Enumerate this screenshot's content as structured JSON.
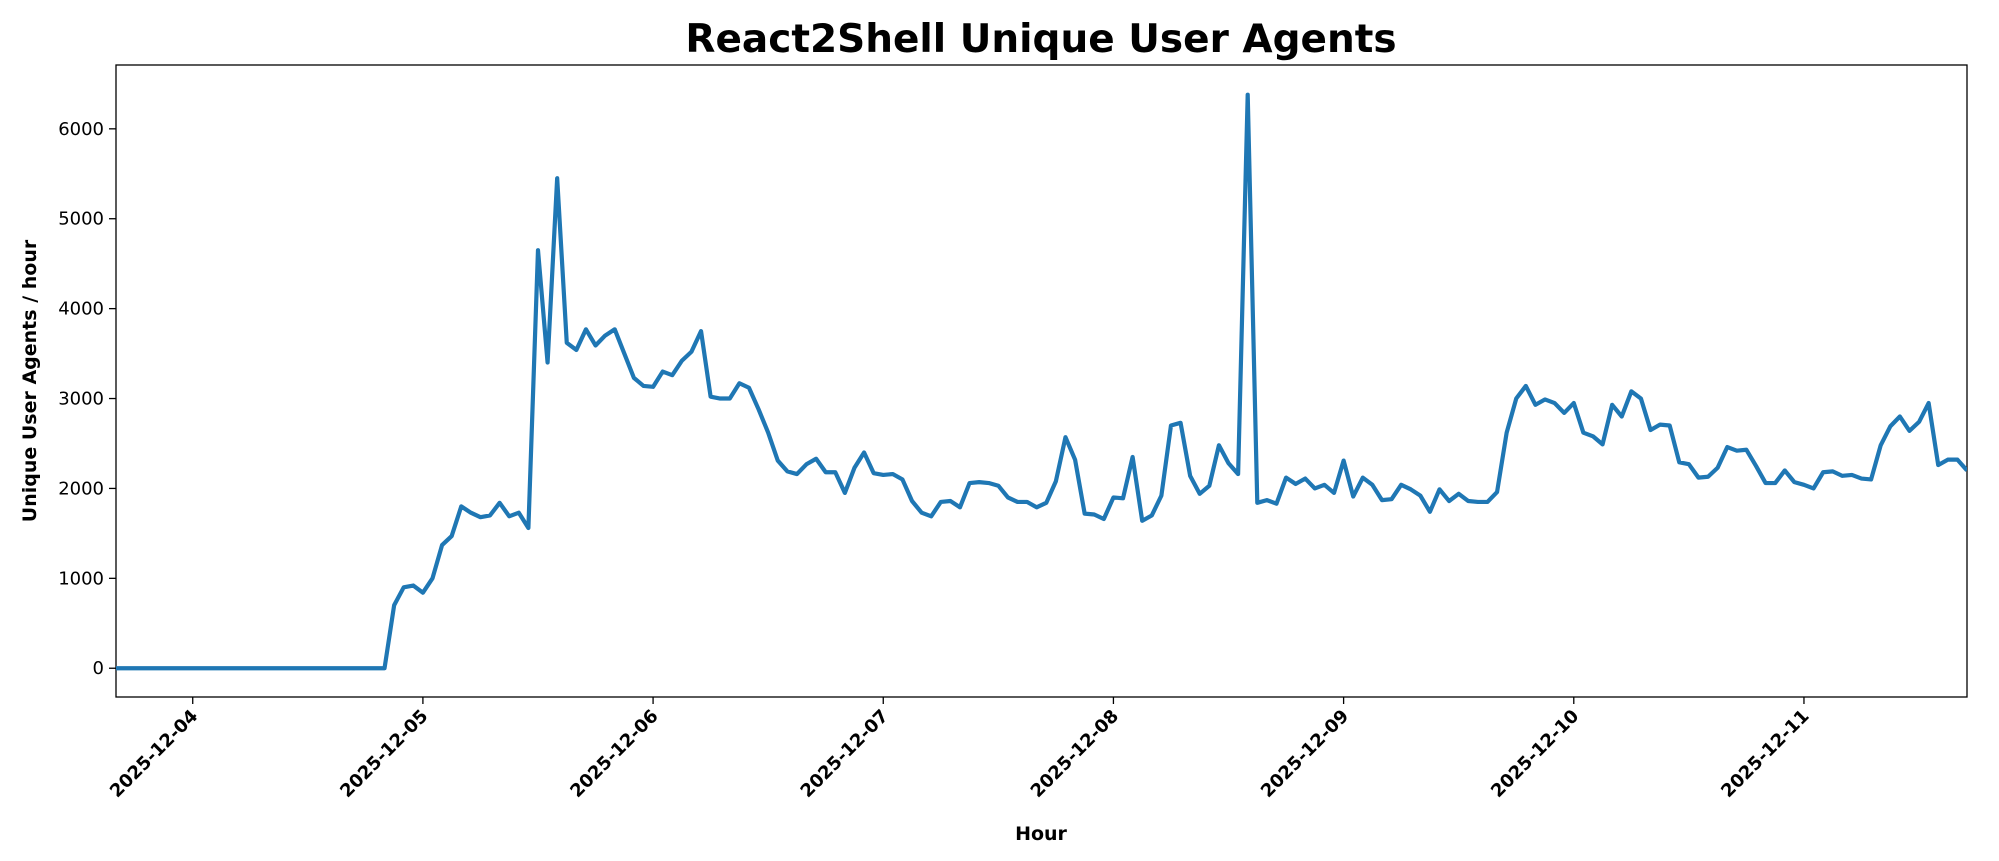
{
  "chart_data": {
    "type": "line",
    "title": "React2Shell Unique User Agents",
    "x_label": "Hour",
    "y_label": "Unique User Agents / hour",
    "color": "#1f77b4",
    "grid": false,
    "x": [
      "2025-12-03 16:00",
      "2025-12-03 17:00",
      "2025-12-03 18:00",
      "2025-12-03 19:00",
      "2025-12-03 20:00",
      "2025-12-03 21:00",
      "2025-12-03 22:00",
      "2025-12-03 23:00",
      "2025-12-04 00:00",
      "2025-12-04 01:00",
      "2025-12-04 02:00",
      "2025-12-04 03:00",
      "2025-12-04 04:00",
      "2025-12-04 05:00",
      "2025-12-04 06:00",
      "2025-12-04 07:00",
      "2025-12-04 08:00",
      "2025-12-04 09:00",
      "2025-12-04 10:00",
      "2025-12-04 11:00",
      "2025-12-04 12:00",
      "2025-12-04 13:00",
      "2025-12-04 14:00",
      "2025-12-04 15:00",
      "2025-12-04 16:00",
      "2025-12-04 17:00",
      "2025-12-04 18:00",
      "2025-12-04 19:00",
      "2025-12-04 20:00",
      "2025-12-04 21:00",
      "2025-12-04 22:00",
      "2025-12-04 23:00",
      "2025-12-05 00:00",
      "2025-12-05 01:00",
      "2025-12-05 02:00",
      "2025-12-05 03:00",
      "2025-12-05 04:00",
      "2025-12-05 05:00",
      "2025-12-05 06:00",
      "2025-12-05 07:00",
      "2025-12-05 08:00",
      "2025-12-05 09:00",
      "2025-12-05 10:00",
      "2025-12-05 11:00",
      "2025-12-05 12:00",
      "2025-12-05 13:00",
      "2025-12-05 14:00",
      "2025-12-05 15:00",
      "2025-12-05 16:00",
      "2025-12-05 17:00",
      "2025-12-05 18:00",
      "2025-12-05 19:00",
      "2025-12-05 20:00",
      "2025-12-05 21:00",
      "2025-12-05 22:00",
      "2025-12-05 23:00",
      "2025-12-06 00:00",
      "2025-12-06 01:00",
      "2025-12-06 02:00",
      "2025-12-06 03:00",
      "2025-12-06 04:00",
      "2025-12-06 05:00",
      "2025-12-06 06:00",
      "2025-12-06 07:00",
      "2025-12-06 08:00",
      "2025-12-06 09:00",
      "2025-12-06 10:00",
      "2025-12-06 11:00",
      "2025-12-06 12:00",
      "2025-12-06 13:00",
      "2025-12-06 14:00",
      "2025-12-06 15:00",
      "2025-12-06 16:00",
      "2025-12-06 17:00",
      "2025-12-06 18:00",
      "2025-12-06 19:00",
      "2025-12-06 20:00",
      "2025-12-06 21:00",
      "2025-12-06 22:00",
      "2025-12-06 23:00",
      "2025-12-07 00:00",
      "2025-12-07 01:00",
      "2025-12-07 02:00",
      "2025-12-07 03:00",
      "2025-12-07 04:00",
      "2025-12-07 05:00",
      "2025-12-07 06:00",
      "2025-12-07 07:00",
      "2025-12-07 08:00",
      "2025-12-07 09:00",
      "2025-12-07 10:00",
      "2025-12-07 11:00",
      "2025-12-07 12:00",
      "2025-12-07 13:00",
      "2025-12-07 14:00",
      "2025-12-07 15:00",
      "2025-12-07 16:00",
      "2025-12-07 17:00",
      "2025-12-07 18:00",
      "2025-12-07 19:00",
      "2025-12-07 20:00",
      "2025-12-07 21:00",
      "2025-12-07 22:00",
      "2025-12-07 23:00",
      "2025-12-08 00:00",
      "2025-12-08 01:00",
      "2025-12-08 02:00",
      "2025-12-08 03:00",
      "2025-12-08 04:00",
      "2025-12-08 05:00",
      "2025-12-08 06:00",
      "2025-12-08 07:00",
      "2025-12-08 08:00",
      "2025-12-08 09:00",
      "2025-12-08 10:00",
      "2025-12-08 11:00",
      "2025-12-08 12:00",
      "2025-12-08 13:00",
      "2025-12-08 14:00",
      "2025-12-08 15:00",
      "2025-12-08 16:00",
      "2025-12-08 17:00",
      "2025-12-08 18:00",
      "2025-12-08 19:00",
      "2025-12-08 20:00",
      "2025-12-08 21:00",
      "2025-12-08 22:00",
      "2025-12-08 23:00",
      "2025-12-09 00:00",
      "2025-12-09 01:00",
      "2025-12-09 02:00",
      "2025-12-09 03:00",
      "2025-12-09 04:00",
      "2025-12-09 05:00",
      "2025-12-09 06:00",
      "2025-12-09 07:00",
      "2025-12-09 08:00",
      "2025-12-09 09:00",
      "2025-12-09 10:00",
      "2025-12-09 11:00",
      "2025-12-09 12:00",
      "2025-12-09 13:00",
      "2025-12-09 14:00",
      "2025-12-09 15:00",
      "2025-12-09 16:00",
      "2025-12-09 17:00",
      "2025-12-09 18:00",
      "2025-12-09 19:00",
      "2025-12-09 20:00",
      "2025-12-09 21:00",
      "2025-12-09 22:00",
      "2025-12-09 23:00",
      "2025-12-10 00:00",
      "2025-12-10 01:00",
      "2025-12-10 02:00",
      "2025-12-10 03:00",
      "2025-12-10 04:00",
      "2025-12-10 05:00",
      "2025-12-10 06:00",
      "2025-12-10 07:00",
      "2025-12-10 08:00",
      "2025-12-10 09:00",
      "2025-12-10 10:00",
      "2025-12-10 11:00",
      "2025-12-10 12:00",
      "2025-12-10 13:00",
      "2025-12-10 14:00",
      "2025-12-10 15:00",
      "2025-12-10 16:00",
      "2025-12-10 17:00",
      "2025-12-10 18:00",
      "2025-12-10 19:00",
      "2025-12-10 20:00",
      "2025-12-10 21:00",
      "2025-12-10 22:00",
      "2025-12-10 23:00",
      "2025-12-11 00:00",
      "2025-12-11 01:00",
      "2025-12-11 02:00",
      "2025-12-11 03:00",
      "2025-12-11 04:00",
      "2025-12-11 05:00",
      "2025-12-11 06:00",
      "2025-12-11 07:00",
      "2025-12-11 08:00",
      "2025-12-11 09:00",
      "2025-12-11 10:00",
      "2025-12-11 11:00",
      "2025-12-11 12:00",
      "2025-12-11 13:00",
      "2025-12-11 14:00",
      "2025-12-11 15:00",
      "2025-12-11 16:00",
      "2025-12-11 17:00"
    ],
    "values": [
      0,
      0,
      0,
      0,
      0,
      0,
      0,
      0,
      0,
      0,
      0,
      0,
      0,
      0,
      0,
      0,
      0,
      0,
      0,
      0,
      0,
      0,
      0,
      0,
      0,
      0,
      0,
      0,
      0,
      700,
      900,
      920,
      840,
      1000,
      1370,
      1470,
      1800,
      1730,
      1680,
      1700,
      1840,
      1690,
      1730,
      1560,
      4650,
      3400,
      5450,
      3620,
      3540,
      3770,
      3590,
      3700,
      3770,
      3500,
      3230,
      3140,
      3130,
      3300,
      3260,
      3420,
      3520,
      3750,
      3020,
      3000,
      3000,
      3170,
      3120,
      2880,
      2620,
      2310,
      2190,
      2160,
      2270,
      2330,
      2180,
      2180,
      1950,
      2230,
      2400,
      2170,
      2150,
      2160,
      2100,
      1860,
      1730,
      1690,
      1850,
      1860,
      1790,
      2060,
      2070,
      2060,
      2030,
      1900,
      1850,
      1850,
      1790,
      1840,
      2080,
      2570,
      2320,
      1720,
      1710,
      1660,
      1900,
      1890,
      2350,
      1640,
      1700,
      1920,
      2700,
      2730,
      2140,
      1940,
      2030,
      2480,
      2280,
      2160,
      6380,
      1840,
      1870,
      1830,
      2120,
      2050,
      2110,
      2000,
      2040,
      1950,
      2310,
      1910,
      2120,
      2040,
      1870,
      1880,
      2040,
      1990,
      1920,
      1740,
      1990,
      1860,
      1940,
      1860,
      1850,
      1850,
      1960,
      2620,
      3000,
      3140,
      2930,
      2990,
      2950,
      2840,
      2950,
      2620,
      2580,
      2490,
      2930,
      2800,
      3080,
      3000,
      2650,
      2710,
      2700,
      2290,
      2270,
      2120,
      2130,
      2230,
      2460,
      2420,
      2430,
      2250,
      2060,
      2060,
      2200,
      2070,
      2040,
      2000,
      2180,
      2190,
      2140,
      2150,
      2110,
      2100,
      2480,
      2690,
      2800,
      2640,
      2740,
      2950,
      2260,
      2320,
      2320,
      2200
    ],
    "xlim": [
      "2025-12-03 16:00",
      "2025-12-11 17:00"
    ],
    "xticks": [
      "2025-12-04",
      "2025-12-05",
      "2025-12-06",
      "2025-12-07",
      "2025-12-08",
      "2025-12-09",
      "2025-12-10",
      "2025-12-11"
    ],
    "ylim": [
      -320,
      6710
    ],
    "yticks": [
      0,
      1000,
      2000,
      3000,
      4000,
      5000,
      6000
    ]
  }
}
